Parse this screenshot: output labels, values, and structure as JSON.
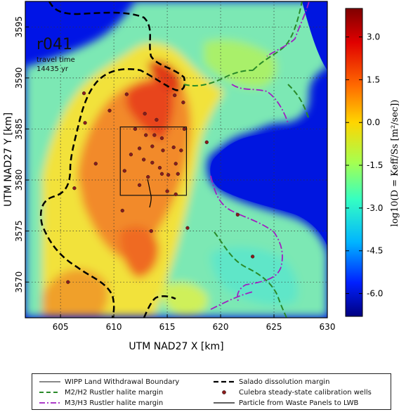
{
  "chart_data": {
    "type": "heatmap",
    "map_label": "r041",
    "annotation_line1": "travel time",
    "annotation_line2": "14435 yr",
    "xlabel": "UTM NAD27 X [km]",
    "ylabel": "UTM NAD27 Y [km]",
    "xlim": [
      601.7,
      630.0
    ],
    "ylim": [
      3566.5,
      3597.5
    ],
    "xticks": [
      "605",
      "610",
      "615",
      "620",
      "625",
      "630"
    ],
    "yticks": [
      "3570",
      "3575",
      "3580",
      "3585",
      "3590",
      "3595"
    ],
    "colorbar_ticks": [
      "3.0",
      "1.5",
      "0.0",
      "-1.5",
      "-3.0",
      "-4.5",
      "-6.0"
    ],
    "colorbar_range": [
      -6.8,
      4.0
    ],
    "colorbar_label": "log10(D = Keff/Ss [m²/sec])",
    "grid": true,
    "wipp_boundary_box": {
      "x": [
        610.6,
        616.8
      ],
      "y": [
        3578.5,
        3585.2
      ]
    },
    "wells": [
      [
        607.2,
        3588.5
      ],
      [
        609.6,
        3586.8
      ],
      [
        611.2,
        3588.4
      ],
      [
        612.9,
        3586.5
      ],
      [
        614.0,
        3585.9
      ],
      [
        615.7,
        3588.3
      ],
      [
        616.5,
        3587.6
      ],
      [
        618.7,
        3583.7
      ],
      [
        612.0,
        3585.0
      ],
      [
        613.0,
        3584.4
      ],
      [
        613.8,
        3584.4
      ],
      [
        614.5,
        3584.1
      ],
      [
        616.6,
        3585.0
      ],
      [
        612.4,
        3583.1
      ],
      [
        613.6,
        3583.3
      ],
      [
        614.6,
        3582.9
      ],
      [
        615.6,
        3583.2
      ],
      [
        611.6,
        3582.5
      ],
      [
        612.8,
        3582.0
      ],
      [
        613.6,
        3581.7
      ],
      [
        614.3,
        3581.2
      ],
      [
        615.8,
        3581.6
      ],
      [
        616.3,
        3582.9
      ],
      [
        611.0,
        3580.9
      ],
      [
        613.2,
        3580.3
      ],
      [
        614.5,
        3580.6
      ],
      [
        615.1,
        3580.5
      ],
      [
        616.0,
        3580.6
      ],
      [
        612.4,
        3579.5
      ],
      [
        615.0,
        3578.9
      ],
      [
        615.8,
        3578.6
      ],
      [
        608.3,
        3581.6
      ],
      [
        606.3,
        3579.2
      ],
      [
        610.8,
        3577.0
      ],
      [
        613.5,
        3575.0
      ],
      [
        616.9,
        3575.3
      ],
      [
        623.0,
        3572.5
      ],
      [
        605.7,
        3570.0
      ],
      [
        607.3,
        3585.6
      ],
      [
        621.6,
        3576.6
      ]
    ],
    "legend": [
      "WIPP Land Withdrawal Boundary",
      "Salado dissolution margin",
      "M2/H2 Rustler halite margin",
      "Culebra steady-state calibration wells",
      "M3/H3 Rustler halite margin",
      "Particle from Waste Panels to LWB"
    ],
    "colors": {
      "salado": "#000000",
      "m2h2": "#2a8a2a",
      "m3h3": "#a020c0",
      "well": "#8b1a1a",
      "boundary": "#111111"
    }
  }
}
